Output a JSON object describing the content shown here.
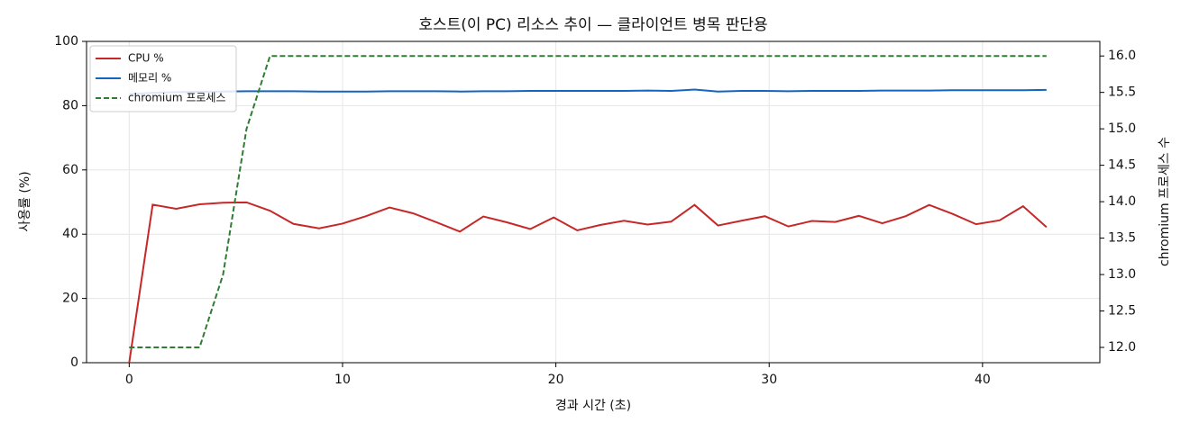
{
  "chart_data": {
    "type": "line",
    "title": "호스트(이 PC) 리소스 추이 — 클라이언트 병목 판단용",
    "x_label": "경과 시간 (초)",
    "y_label": "사용률 (%)",
    "y2_label": "chromium 프로세스 수",
    "x": [
      0,
      1.1,
      2.2,
      3.3,
      4.4,
      5.5,
      6.6,
      7.7,
      8.9,
      10.0,
      11.1,
      12.2,
      13.3,
      14.4,
      15.5,
      16.6,
      17.7,
      18.8,
      19.9,
      21.0,
      22.1,
      23.2,
      24.3,
      25.4,
      26.5,
      27.6,
      28.7,
      29.8,
      30.9,
      32.0,
      33.1,
      34.2,
      35.3,
      36.4,
      37.5,
      38.6,
      39.7,
      40.8,
      41.9,
      43.0
    ],
    "series": [
      {
        "name": "CPU %",
        "color": "#c62828",
        "linestyle": "solid",
        "axis": "y",
        "values": [
          0,
          49.2,
          47.9,
          49.3,
          49.8,
          49.9,
          47.3,
          43.2,
          41.8,
          43.3,
          45.6,
          48.3,
          46.5,
          43.7,
          40.8,
          45.5,
          43.7,
          41.6,
          45.2,
          41.2,
          42.9,
          44.2,
          43.0,
          43.9,
          49.1,
          42.7,
          44.2,
          45.6,
          42.4,
          44.1,
          43.8,
          45.7,
          43.4,
          45.6,
          49.1,
          46.3,
          43.1,
          44.3,
          48.7,
          42.2
        ]
      },
      {
        "name": "메모리 %",
        "color": "#1565c0",
        "linestyle": "solid",
        "axis": "y",
        "values": [
          83.6,
          84.0,
          84.2,
          84.3,
          84.4,
          84.5,
          84.5,
          84.5,
          84.4,
          84.4,
          84.4,
          84.5,
          84.5,
          84.5,
          84.4,
          84.5,
          84.5,
          84.6,
          84.6,
          84.6,
          84.6,
          84.6,
          84.7,
          84.6,
          85.0,
          84.4,
          84.6,
          84.6,
          84.5,
          84.6,
          84.6,
          84.6,
          84.7,
          84.7,
          84.7,
          84.8,
          84.8,
          84.8,
          84.8,
          84.9
        ]
      },
      {
        "name": "chromium 프로세스",
        "color": "#2e7d32",
        "linestyle": "dashed",
        "axis": "y2",
        "values": [
          12,
          12,
          12,
          12,
          13,
          15,
          16,
          16,
          16,
          16,
          16,
          16,
          16,
          16,
          16,
          16,
          16,
          16,
          16,
          16,
          16,
          16,
          16,
          16,
          16,
          16,
          16,
          16,
          16,
          16,
          16,
          16,
          16,
          16,
          16,
          16,
          16,
          16,
          16,
          16
        ]
      }
    ],
    "xlim": [
      -2,
      45.5
    ],
    "xticks": [
      0,
      10,
      20,
      30,
      40
    ],
    "ylim": [
      0,
      100
    ],
    "yticks": [
      0,
      20,
      40,
      60,
      80,
      100
    ],
    "y2lim": [
      11.79,
      16.2
    ],
    "y2ticks": [
      {
        "value": 12,
        "label": "12.0"
      },
      12.5,
      {
        "value": 13,
        "label": "13.0"
      },
      13.5,
      {
        "value": 14,
        "label": "14.0"
      },
      14.5,
      {
        "value": 15,
        "label": "15.0"
      },
      15.5,
      {
        "value": 16,
        "label": "16.0"
      }
    ],
    "grid": true,
    "legend": "upper-left"
  }
}
